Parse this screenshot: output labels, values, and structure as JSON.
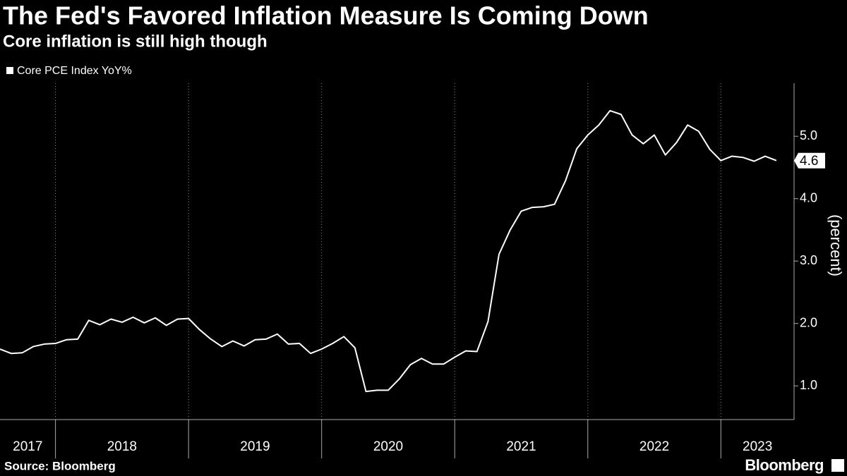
{
  "chart_data": {
    "type": "line",
    "title": "The Fed's Favored Inflation Measure Is Coming Down",
    "subtitle": "Core inflation is still high though",
    "y_label": "(percent)",
    "source": "Source: Bloomberg",
    "brand": "Bloomberg",
    "end_label": "4.6",
    "x": [
      2017.583,
      2017.667,
      2017.75,
      2017.833,
      2017.917,
      2018.0,
      2018.083,
      2018.167,
      2018.25,
      2018.333,
      2018.417,
      2018.5,
      2018.583,
      2018.667,
      2018.75,
      2018.833,
      2018.917,
      2019.0,
      2019.083,
      2019.167,
      2019.25,
      2019.333,
      2019.417,
      2019.5,
      2019.583,
      2019.667,
      2019.75,
      2019.833,
      2019.917,
      2020.0,
      2020.083,
      2020.167,
      2020.25,
      2020.333,
      2020.417,
      2020.5,
      2020.583,
      2020.667,
      2020.75,
      2020.833,
      2020.917,
      2021.0,
      2021.083,
      2021.167,
      2021.25,
      2021.333,
      2021.417,
      2021.5,
      2021.583,
      2021.667,
      2021.75,
      2021.833,
      2021.917,
      2022.0,
      2022.083,
      2022.167,
      2022.25,
      2022.333,
      2022.417,
      2022.5,
      2022.583,
      2022.667,
      2022.75,
      2022.833,
      2022.917,
      2023.0,
      2023.083,
      2023.167,
      2023.25,
      2023.333,
      2023.417
    ],
    "series": [
      {
        "name": "Core PCE Index YoY%",
        "color": "#ffffff",
        "values": [
          1.59,
          1.52,
          1.53,
          1.63,
          1.67,
          1.68,
          1.74,
          1.75,
          2.05,
          1.98,
          2.07,
          2.02,
          2.1,
          2.01,
          2.09,
          1.97,
          2.07,
          2.08,
          1.9,
          1.75,
          1.63,
          1.72,
          1.64,
          1.74,
          1.75,
          1.83,
          1.67,
          1.68,
          1.52,
          1.59,
          1.68,
          1.79,
          1.61,
          0.91,
          0.93,
          0.93,
          1.11,
          1.34,
          1.44,
          1.35,
          1.35,
          1.46,
          1.56,
          1.55,
          2.03,
          3.11,
          3.5,
          3.8,
          3.86,
          3.87,
          3.91,
          4.29,
          4.8,
          5.02,
          5.18,
          5.41,
          5.35,
          5.02,
          4.88,
          5.02,
          4.7,
          4.9,
          5.18,
          5.08,
          4.79,
          4.61,
          4.68,
          4.66,
          4.6,
          4.68,
          4.61
        ]
      }
    ],
    "xlim": [
      2017.583,
      2023.55
    ],
    "xticks": [
      2018,
      2019,
      2020,
      2021,
      2022,
      2023
    ],
    "year_labels": [
      2017,
      2018,
      2019,
      2020,
      2021,
      2022,
      2023
    ],
    "ylim": [
      0.46,
      5.85
    ],
    "yticks": [
      {
        "value": 1,
        "label": "1.0"
      },
      {
        "value": 2,
        "label": "2.0"
      },
      {
        "value": 3,
        "label": "3.0"
      },
      {
        "value": 4,
        "label": "4.0"
      },
      {
        "value": 5,
        "label": "5.0"
      }
    ],
    "grid": true
  }
}
